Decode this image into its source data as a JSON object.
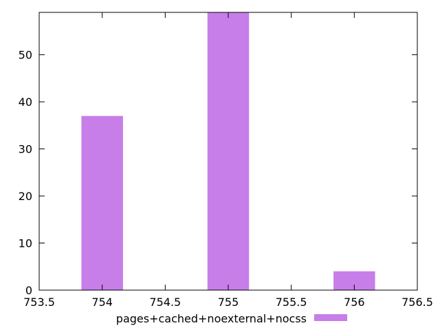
{
  "chart_data": {
    "type": "bar",
    "x": [
      754,
      755,
      756
    ],
    "series": [
      {
        "name": "pages+cached+noexternal+nocss",
        "values": [
          37,
          59,
          4
        ],
        "color": "#c77ee8"
      }
    ],
    "bar_width": 0.33,
    "xlim": [
      753.5,
      756.5
    ],
    "ylim": [
      0,
      59
    ],
    "x_ticks": [
      "753.5",
      "754",
      "754.5",
      "755",
      "755.5",
      "756",
      "756.5"
    ],
    "y_ticks": [
      "0",
      "10",
      "20",
      "30",
      "40",
      "50"
    ],
    "grid": false,
    "legend_position": "bottom-center"
  }
}
